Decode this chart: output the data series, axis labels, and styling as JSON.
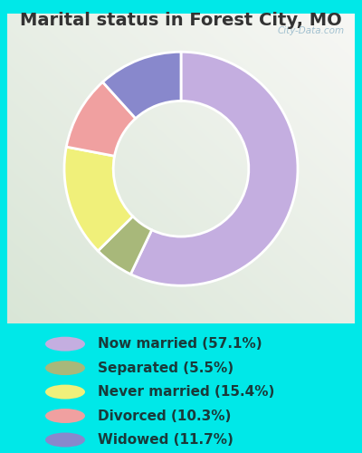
{
  "title": "Marital status in Forest City, MO",
  "slices": [
    {
      "label": "Now married (57.1%)",
      "value": 57.1,
      "color": "#c4aee0"
    },
    {
      "label": "Separated (5.5%)",
      "value": 5.5,
      "color": "#a8b87a"
    },
    {
      "label": "Never married (15.4%)",
      "value": 15.4,
      "color": "#f0f07a"
    },
    {
      "label": "Divorced (10.3%)",
      "value": 10.3,
      "color": "#f0a0a0"
    },
    {
      "label": "Widowed (11.7%)",
      "value": 11.7,
      "color": "#8888cc"
    }
  ],
  "bg_color": "#00e8e8",
  "chart_bg_tl": "#c5e8d0",
  "chart_bg_br": "#ddf0cc",
  "watermark": "City-Data.com",
  "title_fontsize": 14,
  "legend_fontsize": 11,
  "donut_width": 0.42,
  "title_color": "#333333"
}
